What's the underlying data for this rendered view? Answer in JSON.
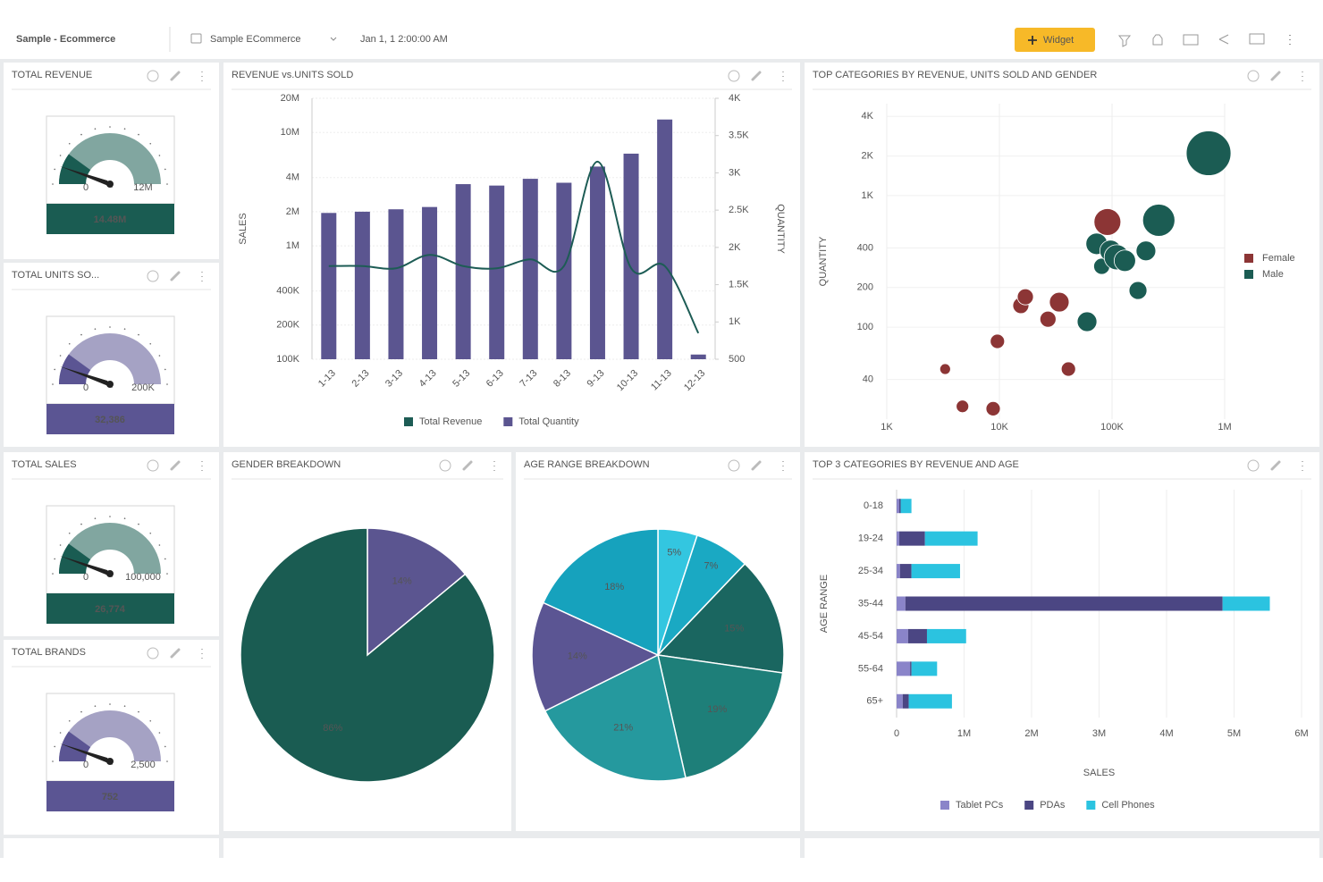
{
  "header": {
    "title": "Sample - Ecommerce",
    "dashboard": "Sample ECommerce",
    "date": "Jan 1, 1 2:00:00 AM",
    "button": "Widget"
  },
  "kpis": [
    {
      "title": "TOTAL REVENUE",
      "value": "14.48M",
      "scale_min": "0",
      "scale_max": "12M",
      "color": "#1a5c52"
    },
    {
      "title": "TOTAL UNITS SO...",
      "value": "32,386",
      "scale_min": "0",
      "scale_max": "200K",
      "color": "#5b5593"
    },
    {
      "title": "TOTAL SALES",
      "value": "26,774",
      "scale_min": "0",
      "scale_max": "100,000",
      "color": "#1a5c52"
    },
    {
      "title": "TOTAL BRANDS",
      "value": "752",
      "scale_min": "0",
      "scale_max": "2,500",
      "color": "#5b5593"
    }
  ],
  "chart_data": [
    {
      "type": "bar-line",
      "title": "REVENUE vs.UNITS SOLD",
      "categories": [
        "1-13",
        "2-13",
        "3-13",
        "4-13",
        "5-13",
        "6-13",
        "7-13",
        "8-13",
        "9-13",
        "10-13",
        "11-13",
        "12-13"
      ],
      "ylabel": "SALES",
      "y2label": "QUANTITY",
      "ylog": true,
      "grid": true,
      "legend": "bottom",
      "ylim": [
        100000,
        20000000
      ],
      "yticks": [
        {
          "value": 100000,
          "label": "100K"
        },
        {
          "value": 200000,
          "label": "200K"
        },
        {
          "value": 400000,
          "label": "400K"
        },
        {
          "value": 1000000,
          "label": "1M"
        },
        {
          "value": 2000000,
          "label": "2M"
        },
        {
          "value": 4000000,
          "label": "4M"
        },
        {
          "value": 10000000,
          "label": "10M"
        },
        {
          "value": 20000000,
          "label": "20M"
        }
      ],
      "y2lim": [
        500,
        4000
      ],
      "y2ticks": [
        500,
        {
          "value": 1000,
          "label": "1K"
        },
        {
          "value": 1500,
          "label": "1.5K"
        },
        {
          "value": 2000,
          "label": "2K"
        },
        {
          "value": 2500,
          "label": "2.5K"
        },
        {
          "value": 3000,
          "label": "3K"
        },
        {
          "value": 3500,
          "label": "3.5K"
        },
        {
          "value": 4000,
          "label": "4K"
        }
      ],
      "series": [
        {
          "name": "Total Revenue",
          "color": "#1d5c55",
          "type": "line",
          "axis": "y2",
          "values": [
            1750,
            1750,
            1720,
            1900,
            1750,
            1720,
            1840,
            1750,
            3150,
            1720,
            1750,
            850
          ]
        },
        {
          "name": "Total Quantity",
          "color": "#5b5590",
          "type": "bar",
          "values": [
            1950000,
            2000000,
            2100000,
            2200000,
            3500000,
            3400000,
            3900000,
            3600000,
            5000000,
            6500000,
            13000000,
            110000
          ]
        }
      ]
    },
    {
      "type": "bubble",
      "title": "TOP CATEGORIES BY REVENUE, UNITS SOLD AND GENDER",
      "ylabel": "QUANTITY",
      "xlog": true,
      "ylog": true,
      "grid": true,
      "legend": "right",
      "xlim": [
        1000,
        1000000
      ],
      "xticks": [
        {
          "value": 1000,
          "label": "1K"
        },
        {
          "value": 10000,
          "label": "10K"
        },
        {
          "value": 100000,
          "label": "100K"
        },
        {
          "value": 1000000,
          "label": "1M"
        }
      ],
      "ylim": [
        20,
        5000
      ],
      "yticks": [
        40,
        100,
        200,
        400,
        {
          "value": 1000,
          "label": "1K"
        },
        {
          "value": 2000,
          "label": "2K"
        },
        {
          "value": 4000,
          "label": "4K"
        }
      ],
      "series": [
        {
          "name": "Female",
          "color": "#8c3535",
          "x": [
            3300,
            4700,
            8800,
            9600,
            15500,
            17000,
            27000,
            34000,
            41000,
            91000
          ],
          "values": [
            48,
            25,
            24,
            78,
            146,
            170,
            115,
            155,
            48,
            630
          ],
          "sizes": [
            6,
            7,
            8,
            8,
            9,
            9,
            9,
            11,
            8,
            15
          ]
        },
        {
          "name": "Male",
          "color": "#1b5c53",
          "x": [
            60000,
            73000,
            81000,
            97000,
            110000,
            130000,
            200000,
            170000,
            260000,
            720000
          ],
          "values": [
            110,
            430,
            290,
            380,
            340,
            320,
            380,
            190,
            650,
            2100
          ],
          "sizes": [
            11,
            12,
            9,
            12,
            14,
            12,
            11,
            10,
            18,
            25
          ]
        }
      ]
    },
    {
      "type": "pie",
      "title": "GENDER BREAKDOWN",
      "values": [
        14,
        86
      ],
      "value_labels": [
        "14%",
        "86%"
      ],
      "colors": [
        "#5b5590",
        "#1a5c52"
      ]
    },
    {
      "type": "pie",
      "title": "AGE RANGE BREAKDOWN",
      "values": [
        5,
        7,
        15,
        19,
        21,
        14,
        18
      ],
      "value_labels": [
        "5%",
        "7%",
        "15%",
        "19%",
        "21%",
        "14%",
        "18%"
      ],
      "colors": [
        "#33c6e0",
        "#1aa9c3",
        "#1a6660",
        "#1e7f79",
        "#25999e",
        "#5b5593",
        "#16a2bd"
      ]
    },
    {
      "type": "stacked-barh",
      "title": "TOP 3 CATEGORIES BY REVENUE AND AGE",
      "categories": [
        "0-18",
        "19-24",
        "25-34",
        "35-44",
        "45-54",
        "55-64",
        "65+"
      ],
      "ylabel": "AGE RANGE",
      "xlabel": "SALES",
      "grid": true,
      "legend": "bottom",
      "xlim": [
        0,
        6000000
      ],
      "xticks": [
        0,
        {
          "value": 1000000,
          "label": "1M"
        },
        {
          "value": 2000000,
          "label": "2M"
        },
        {
          "value": 3000000,
          "label": "3M"
        },
        {
          "value": 4000000,
          "label": "4M"
        },
        {
          "value": 5000000,
          "label": "5M"
        },
        {
          "value": 6000000,
          "label": "6M"
        }
      ],
      "series": [
        {
          "name": "Tablet PCs",
          "color": "#8a84c9",
          "values": [
            40000,
            40000,
            50000,
            130000,
            170000,
            200000,
            90000
          ]
        },
        {
          "name": "PDAs",
          "color": "#4b4683",
          "values": [
            20000,
            380000,
            170000,
            4700000,
            280000,
            20000,
            90000
          ]
        },
        {
          "name": "Cell Phones",
          "color": "#2bc3e0",
          "values": [
            160000,
            780000,
            720000,
            700000,
            580000,
            380000,
            640000
          ]
        }
      ]
    }
  ]
}
